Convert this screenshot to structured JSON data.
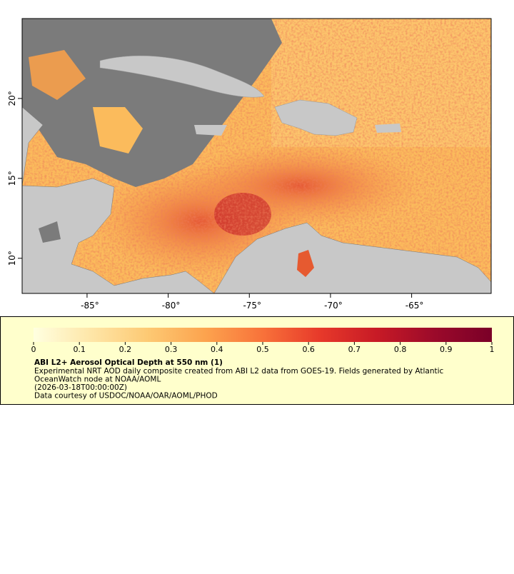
{
  "map": {
    "xlim": [
      -89,
      -60.1
    ],
    "ylim": [
      7.8,
      25
    ],
    "xticks": [
      {
        "value": -85,
        "label": "-85°"
      },
      {
        "value": -80,
        "label": "-80°"
      },
      {
        "value": -75,
        "label": "-75°"
      },
      {
        "value": -70,
        "label": "-70°"
      },
      {
        "value": -65,
        "label": "-65°"
      }
    ],
    "yticks": [
      {
        "value": 10,
        "label": "10°"
      },
      {
        "value": 15,
        "label": "15°"
      },
      {
        "value": 20,
        "label": "20°"
      }
    ]
  },
  "colorbar": {
    "lim": [
      0,
      1
    ],
    "ticks": [
      0,
      0.1,
      0.2,
      0.3,
      0.4,
      0.5,
      0.6,
      0.7,
      0.8,
      0.9,
      1
    ],
    "palette": [
      "#ffffe0",
      "#fee6a8",
      "#fdc973",
      "#fca34e",
      "#f8723a",
      "#e7392a",
      "#c71a26",
      "#9b0a2a",
      "#7a0028"
    ]
  },
  "info": {
    "title": "ABI L2+ Aerosol Optical Depth at 550 nm (1)",
    "lines": [
      "Experimental NRT AOD daily composite created from ABI L2 data from GOES-19. Fields generated by Atlantic",
      "OceanWatch node at NOAA/AOML",
      "(2026-03-18T00:00:00Z)",
      "Data courtesy of USDOC/NOAA/OAR/AOML/PHOD"
    ]
  }
}
